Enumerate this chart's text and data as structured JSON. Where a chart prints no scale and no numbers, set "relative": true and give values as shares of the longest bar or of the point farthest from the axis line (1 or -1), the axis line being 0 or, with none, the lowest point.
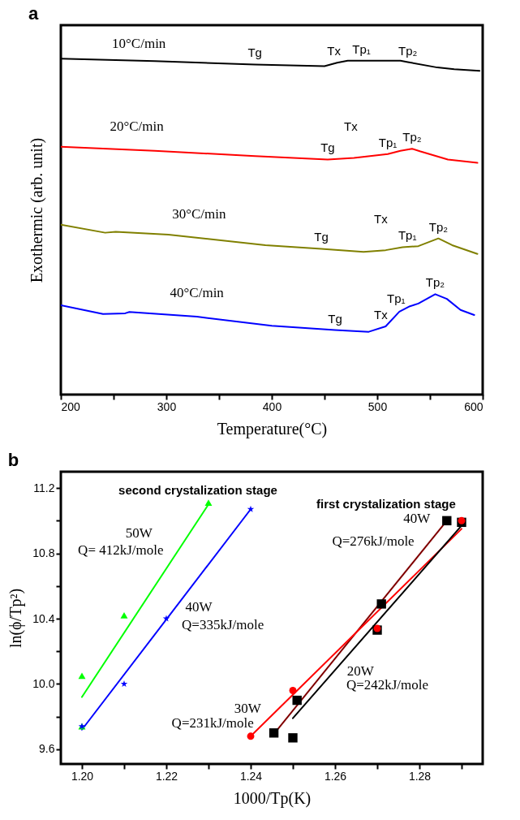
{
  "chart_data": [
    {
      "type": "line",
      "title": "a",
      "xlabel": "Temperature(°C)",
      "ylabel": "Exothermic (arb. unit)",
      "relative": true,
      "xlim": [
        200,
        600
      ],
      "xticks": [
        200,
        {
          "value": 250,
          "label": null
        },
        300,
        {
          "value": 350,
          "label": null
        },
        400,
        {
          "value": 450,
          "label": null
        },
        500,
        {
          "value": 550,
          "label": null
        },
        600
      ],
      "series": [
        {
          "name": "10°C/min",
          "color": "#000000",
          "x": [
            200,
            289,
            384,
            450,
            462,
            472,
            485,
            522,
            529,
            557,
            573,
            597
          ],
          "values": [
            1.0,
            0.993,
            0.983,
            0.978,
            0.988,
            0.994,
            0.994,
            0.994,
            0.99,
            0.974,
            0.969,
            0.964
          ]
        },
        {
          "name": "20°C/min",
          "color": "#ff0000",
          "x": [
            200,
            289,
            384,
            453,
            478,
            510,
            522,
            533,
            541,
            567,
            595
          ],
          "values": [
            0.738,
            0.726,
            0.71,
            0.7,
            0.705,
            0.716,
            0.726,
            0.732,
            0.724,
            0.7,
            0.69
          ]
        },
        {
          "name": "30°C/min",
          "color": "#808000",
          "x": [
            200,
            242,
            252,
            302,
            394,
            447,
            487,
            508,
            524,
            539,
            558,
            571,
            595
          ],
          "values": [
            0.506,
            0.482,
            0.485,
            0.476,
            0.445,
            0.434,
            0.425,
            0.43,
            0.439,
            0.442,
            0.465,
            0.445,
            0.419
          ]
        },
        {
          "name": "40°C/min",
          "color": "#0000ff",
          "x": [
            200,
            240,
            261,
            265,
            329,
            400,
            460,
            492,
            508,
            521,
            531,
            539,
            555,
            566,
            579,
            592
          ],
          "values": [
            0.266,
            0.24,
            0.242,
            0.246,
            0.232,
            0.205,
            0.192,
            0.187,
            0.203,
            0.247,
            0.263,
            0.271,
            0.299,
            0.285,
            0.252,
            0.237
          ]
        }
      ],
      "annotations": [
        {
          "text": "Tg",
          "x": 384,
          "y": 0.983
        },
        {
          "text": "Tx",
          "x": 462,
          "y": 0.988
        },
        {
          "text": "Tp₁",
          "x": 485,
          "y": 0.994
        },
        {
          "text": "Tp₂",
          "x": 529,
          "y": 0.99
        },
        {
          "text": "Tg",
          "x": 453,
          "y": 0.7
        },
        {
          "text": "Tx",
          "x": 478,
          "y": 0.705
        },
        {
          "text": "Tp₁",
          "x": 510,
          "y": 0.716
        },
        {
          "text": "Tp₂",
          "x": 533,
          "y": 0.732
        },
        {
          "text": "Tg",
          "x": 447,
          "y": 0.434
        },
        {
          "text": "Tx",
          "x": 508,
          "y": 0.43
        },
        {
          "text": "Tp₁",
          "x": 524,
          "y": 0.439
        },
        {
          "text": "Tp₂",
          "x": 558,
          "y": 0.465
        },
        {
          "text": "Tg",
          "x": 460,
          "y": 0.192
        },
        {
          "text": "Tx",
          "x": 508,
          "y": 0.203
        },
        {
          "text": "Tp₁",
          "x": 521,
          "y": 0.247
        },
        {
          "text": "Tp₂",
          "x": 555,
          "y": 0.299
        }
      ]
    },
    {
      "type": "scatter",
      "title": "b",
      "xlabel": "1000/Tp(K)",
      "ylabel": "ln(ϕ/Tp²)",
      "xlim": [
        1.195,
        1.295
      ],
      "ylim": [
        9.51,
        11.3
      ],
      "xticks": [
        {
          "value": 1.2,
          "label": "1.20"
        },
        {
          "value": 1.21,
          "label": null
        },
        1.22,
        {
          "value": 1.23,
          "label": null
        },
        1.24,
        {
          "value": 1.25,
          "label": null
        },
        1.26,
        {
          "value": 1.27,
          "label": null
        },
        1.28,
        {
          "value": 1.29,
          "label": null
        }
      ],
      "yticks": [
        9.6,
        {
          "value": 9.8,
          "label": null
        },
        {
          "value": 10,
          "label": "10.0"
        },
        {
          "value": 10.2,
          "label": null
        },
        10.4,
        {
          "value": 10.6,
          "label": null
        },
        10.8,
        {
          "value": 11,
          "label": null
        },
        11.2
      ],
      "series": [
        {
          "type": "line",
          "name": "Q= 412kJ/mole",
          "color": "#00ff00",
          "x": [
            1.2,
            1.23
          ],
          "values": [
            9.92,
            11.1
          ]
        },
        {
          "type": "line",
          "name": "Q=335kJ/mole",
          "color": "#0000ff",
          "x": [
            1.2,
            1.24
          ],
          "values": [
            9.72,
            11.07
          ]
        },
        {
          "type": "line",
          "name": "Q=276kJ/mole",
          "color": "#800000",
          "x": [
            1.246,
            1.2865
          ],
          "values": [
            9.71,
            11.0
          ]
        },
        {
          "type": "line",
          "name": "Q=231kJ/mole",
          "color": "#ff0000",
          "x": [
            1.24,
            1.29
          ],
          "values": [
            9.68,
            10.95
          ]
        },
        {
          "type": "line",
          "name": "Q=242kJ/mole",
          "color": "#000000",
          "x": [
            1.25,
            1.29
          ],
          "values": [
            9.79,
            10.97
          ]
        },
        {
          "marker": "triangle",
          "color": "#00ff00",
          "x": [
            1.2,
            1.2,
            1.21,
            1.23
          ],
          "values": [
            10.05,
            9.74,
            10.42,
            11.11
          ]
        },
        {
          "marker": "star",
          "color": "#0000ff",
          "x": [
            1.2,
            1.21,
            1.22,
            1.24
          ],
          "values": [
            9.74,
            10.0,
            10.4,
            11.07
          ]
        },
        {
          "marker": "square",
          "color": "#000000",
          "x": [
            1.25,
            1.27,
            1.29
          ],
          "values": [
            9.67,
            10.33,
            10.99
          ]
        },
        {
          "marker": "square",
          "color": "#000000",
          "x": [
            1.2455,
            1.251,
            1.271,
            1.2865
          ],
          "values": [
            9.7,
            9.9,
            10.49,
            11.0
          ]
        },
        {
          "marker": "circle",
          "color": "#ff0000",
          "x": [
            1.24,
            1.25,
            1.27,
            1.29
          ],
          "values": [
            9.68,
            9.96,
            10.34,
            11.0
          ]
        }
      ],
      "annotations": [
        "second crystalization stage",
        "first crystalization stage",
        "50W",
        "40W",
        "40W",
        "20W",
        "30W"
      ]
    }
  ]
}
